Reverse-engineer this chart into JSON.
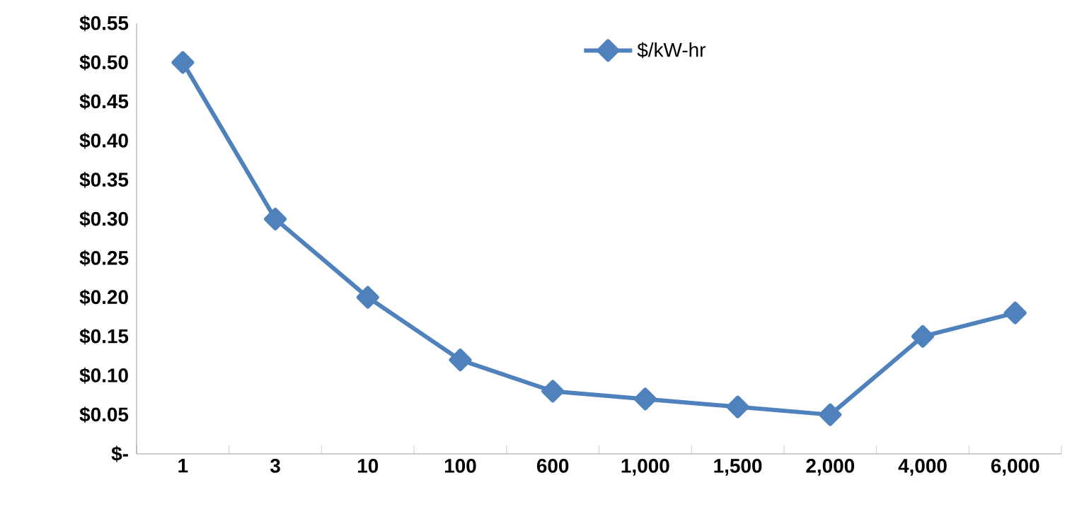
{
  "chart_data": {
    "type": "line",
    "categories": [
      "1",
      "3",
      "10",
      "100",
      "600",
      "1,000",
      "1,500",
      "2,000",
      "4,000",
      "6,000"
    ],
    "series": [
      {
        "name": "$/kW-hr",
        "color": "#4f81bd",
        "values": [
          0.5,
          0.3,
          0.2,
          0.12,
          0.08,
          0.07,
          0.06,
          0.05,
          0.15,
          0.18
        ]
      }
    ],
    "ylim": [
      0,
      0.55
    ],
    "yticks": [
      {
        "value": 0,
        "label": "$-"
      },
      {
        "value": 0.05,
        "label": "$0.05"
      },
      {
        "value": 0.1,
        "label": "$0.10"
      },
      {
        "value": 0.15,
        "label": "$0.15"
      },
      {
        "value": 0.2,
        "label": "$0.20"
      },
      {
        "value": 0.25,
        "label": "$0.25"
      },
      {
        "value": 0.3,
        "label": "$0.30"
      },
      {
        "value": 0.35,
        "label": "$0.35"
      },
      {
        "value": 0.4,
        "label": "$0.40"
      },
      {
        "value": 0.45,
        "label": "$0.45"
      },
      {
        "value": 0.5,
        "label": "$0.50"
      },
      {
        "value": 0.55,
        "label": "$0.55"
      }
    ],
    "legend": "top",
    "marker": "diamond",
    "line_style": "solid",
    "grid": false
  }
}
